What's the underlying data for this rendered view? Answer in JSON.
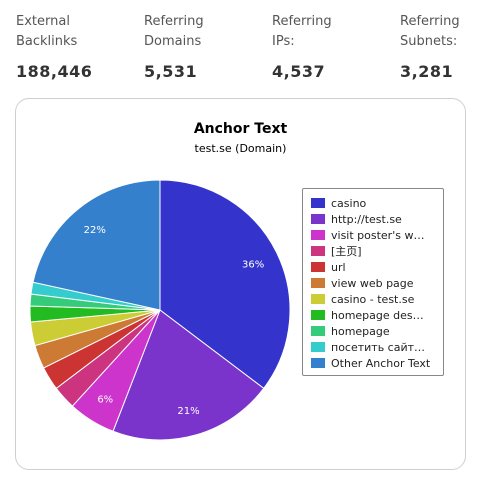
{
  "stats": [
    {
      "label": "External\nBacklinks",
      "value": "188,446"
    },
    {
      "label": "Referring\nDomains",
      "value": "5,531"
    },
    {
      "label": "Referring\nIPs:",
      "value": "4,537"
    },
    {
      "label": "Referring\nSubnets:",
      "value": "3,281"
    }
  ],
  "chart_data": {
    "type": "pie",
    "title": "Anchor Text",
    "subtitle": "test.se (Domain)",
    "legend_position": "right",
    "slices": [
      {
        "label": "casino",
        "value": 36,
        "color": "#3434cc",
        "value_label": "36%"
      },
      {
        "label": "http://test.se",
        "value": 21,
        "color": "#7a34cc",
        "value_label": "21%"
      },
      {
        "label": "visit poster's w…",
        "value": 6,
        "color": "#cc34cc",
        "value_label": "6%"
      },
      {
        "label": "[主页]",
        "value": 3,
        "color": "#cc3480",
        "value_label": ""
      },
      {
        "label": "url",
        "value": 3,
        "color": "#cc3434",
        "value_label": ""
      },
      {
        "label": "view web page",
        "value": 3,
        "color": "#cc7a34",
        "value_label": ""
      },
      {
        "label": "casino - test.se",
        "value": 3,
        "color": "#cccc34",
        "value_label": ""
      },
      {
        "label": "homepage des…",
        "value": 2,
        "color": "#22bb22",
        "value_label": ""
      },
      {
        "label": "homepage",
        "value": 1.5,
        "color": "#34cc7a",
        "value_label": ""
      },
      {
        "label": "посетить сайт…",
        "value": 1.5,
        "color": "#34cccc",
        "value_label": ""
      },
      {
        "label": "Other Anchor Text",
        "value": 22,
        "color": "#3480cc",
        "value_label": "22%"
      }
    ]
  }
}
